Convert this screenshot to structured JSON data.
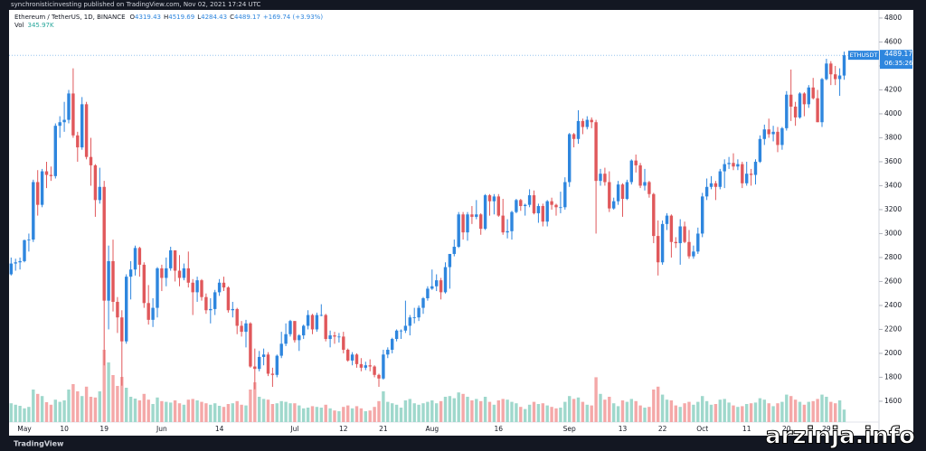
{
  "header": {
    "published": "synchronisticinvesting published on TradingView.com, Nov 02, 2021 17:24 UTC",
    "symbol": "Ethereum / TetherUS, 1D, BINANCE",
    "change": "+169.74 (+3.93%)",
    "ohlc_letters": [
      "O",
      "H",
      "L",
      "C"
    ],
    "volume_name": "Vol",
    "volume_label": "345.97K"
  },
  "price_badge": {
    "ticker": "ETHUSDT",
    "countdown": "06:35:26"
  },
  "footer": {
    "logo": "TradingView",
    "watermark": "arzinja.info"
  },
  "chart_data": {
    "type": "candlestick",
    "up_color": "#2e86de",
    "down_color": "#e0585b",
    "volume_up_color": "#9fd8cc",
    "volume_down_color": "#f4a8a8",
    "ylim": [
      1426,
      4860
    ],
    "yticks": [
      1600,
      1800,
      2000,
      2200,
      2400,
      2600,
      2800,
      3000,
      3200,
      3400,
      3600,
      3800,
      4000,
      4200,
      4400,
      4600,
      4800
    ],
    "categories": [
      null,
      null,
      null,
      "May",
      null,
      null,
      null,
      null,
      null,
      null,
      null,
      null,
      "10",
      null,
      null,
      null,
      null,
      null,
      null,
      null,
      null,
      "19",
      null,
      null,
      null,
      null,
      null,
      null,
      null,
      null,
      null,
      null,
      null,
      null,
      "Jun",
      null,
      null,
      null,
      null,
      null,
      null,
      null,
      null,
      null,
      null,
      null,
      null,
      "14",
      null,
      null,
      null,
      null,
      null,
      null,
      null,
      null,
      null,
      null,
      null,
      null,
      null,
      null,
      null,
      null,
      "Jul",
      null,
      null,
      null,
      null,
      null,
      null,
      null,
      null,
      null,
      null,
      "12",
      null,
      null,
      null,
      null,
      null,
      null,
      null,
      null,
      "21",
      null,
      null,
      null,
      null,
      null,
      null,
      null,
      null,
      null,
      null,
      "Aug",
      null,
      null,
      null,
      null,
      null,
      null,
      null,
      null,
      null,
      null,
      null,
      null,
      null,
      null,
      "16",
      null,
      null,
      null,
      null,
      null,
      null,
      null,
      null,
      null,
      null,
      null,
      null,
      null,
      null,
      null,
      "Sep",
      null,
      null,
      null,
      null,
      null,
      null,
      null,
      null,
      null,
      null,
      null,
      "13",
      null,
      null,
      null,
      null,
      null,
      null,
      null,
      null,
      "22",
      null,
      null,
      null,
      null,
      null,
      null,
      null,
      null,
      "Oct",
      null,
      null,
      null,
      null,
      null,
      null,
      null,
      null,
      null,
      "11",
      null,
      null,
      null,
      null,
      null,
      null,
      null,
      null,
      "20",
      null,
      null,
      null,
      null,
      null,
      null,
      null,
      null,
      "29",
      null,
      null,
      null,
      null
    ],
    "ohlc": [
      [
        2660,
        2800,
        2650,
        2750
      ],
      [
        2750,
        2790,
        2690,
        2760
      ],
      [
        2760,
        2800,
        2700,
        2770
      ],
      [
        2770,
        2950,
        2760,
        2945
      ],
      [
        2945,
        3000,
        2850,
        2950
      ],
      [
        2950,
        3450,
        2930,
        3430
      ],
      [
        3430,
        3530,
        3150,
        3240
      ],
      [
        3240,
        3540,
        3220,
        3520
      ],
      [
        3520,
        3600,
        3380,
        3490
      ],
      [
        3490,
        3560,
        3440,
        3480
      ],
      [
        3480,
        3920,
        3460,
        3900
      ],
      [
        3900,
        3980,
        3800,
        3930
      ],
      [
        3930,
        4100,
        3850,
        3950
      ],
      [
        3950,
        4200,
        3920,
        4170
      ],
      [
        4170,
        4380,
        3800,
        3820
      ],
      [
        3820,
        3850,
        3600,
        3720
      ],
      [
        3720,
        4140,
        3700,
        4080
      ],
      [
        4080,
        4100,
        3620,
        3640
      ],
      [
        3640,
        3800,
        3400,
        3570
      ],
      [
        3570,
        3580,
        3140,
        3280
      ],
      [
        3280,
        3550,
        3250,
        3390
      ],
      [
        3390,
        3440,
        1900,
        2440
      ],
      [
        2440,
        2900,
        2200,
        2770
      ],
      [
        2770,
        2950,
        2350,
        2430
      ],
      [
        2430,
        2470,
        2170,
        2300
      ],
      [
        2300,
        2360,
        1730,
        2100
      ],
      [
        2100,
        2660,
        2080,
        2640
      ],
      [
        2640,
        2770,
        2450,
        2700
      ],
      [
        2700,
        2900,
        2650,
        2880
      ],
      [
        2880,
        2890,
        2640,
        2740
      ],
      [
        2740,
        2760,
        2380,
        2420
      ],
      [
        2420,
        2570,
        2240,
        2280
      ],
      [
        2280,
        2460,
        2220,
        2380
      ],
      [
        2380,
        2720,
        2300,
        2710
      ],
      [
        2710,
        2740,
        2520,
        2630
      ],
      [
        2630,
        2800,
        2560,
        2710
      ],
      [
        2710,
        2890,
        2690,
        2860
      ],
      [
        2860,
        2860,
        2600,
        2690
      ],
      [
        2690,
        2820,
        2560,
        2630
      ],
      [
        2630,
        2750,
        2610,
        2710
      ],
      [
        2710,
        2850,
        2550,
        2590
      ],
      [
        2590,
        2620,
        2320,
        2510
      ],
      [
        2510,
        2640,
        2430,
        2610
      ],
      [
        2610,
        2620,
        2440,
        2470
      ],
      [
        2470,
        2500,
        2330,
        2360
      ],
      [
        2360,
        2460,
        2250,
        2370
      ],
      [
        2370,
        2530,
        2320,
        2510
      ],
      [
        2510,
        2620,
        2480,
        2590
      ],
      [
        2590,
        2640,
        2520,
        2550
      ],
      [
        2550,
        2560,
        2340,
        2360
      ],
      [
        2360,
        2430,
        2300,
        2370
      ],
      [
        2370,
        2380,
        2160,
        2230
      ],
      [
        2230,
        2270,
        2140,
        2180
      ],
      [
        2180,
        2280,
        2050,
        2250
      ],
      [
        2250,
        2260,
        1880,
        1890
      ],
      [
        1890,
        2040,
        1700,
        1870
      ],
      [
        1870,
        2020,
        1850,
        1970
      ],
      [
        1970,
        2040,
        1900,
        1990
      ],
      [
        1990,
        2010,
        1810,
        1830
      ],
      [
        1830,
        1880,
        1720,
        1820
      ],
      [
        1820,
        1990,
        1800,
        1980
      ],
      [
        1980,
        2180,
        1960,
        2080
      ],
      [
        2080,
        2250,
        2060,
        2160
      ],
      [
        2160,
        2280,
        2140,
        2270
      ],
      [
        2270,
        2270,
        2090,
        2110
      ],
      [
        2110,
        2160,
        2020,
        2150
      ],
      [
        2150,
        2240,
        2120,
        2230
      ],
      [
        2230,
        2360,
        2200,
        2320
      ],
      [
        2320,
        2330,
        2160,
        2200
      ],
      [
        2200,
        2340,
        2180,
        2320
      ],
      [
        2320,
        2410,
        2310,
        2320
      ],
      [
        2320,
        2330,
        2100,
        2120
      ],
      [
        2120,
        2190,
        2050,
        2150
      ],
      [
        2150,
        2180,
        2080,
        2140
      ],
      [
        2140,
        2170,
        2090,
        2140
      ],
      [
        2140,
        2180,
        2000,
        2030
      ],
      [
        2030,
        2040,
        1930,
        1940
      ],
      [
        1940,
        2010,
        1900,
        1990
      ],
      [
        1990,
        2000,
        1880,
        1910
      ],
      [
        1910,
        1960,
        1850,
        1880
      ],
      [
        1880,
        1930,
        1860,
        1900
      ],
      [
        1900,
        1950,
        1850,
        1890
      ],
      [
        1890,
        1900,
        1800,
        1820
      ],
      [
        1820,
        1830,
        1720,
        1790
      ],
      [
        1790,
        2030,
        1780,
        1990
      ],
      [
        1990,
        2050,
        1960,
        2030
      ],
      [
        2030,
        2130,
        2000,
        2120
      ],
      [
        2120,
        2200,
        2100,
        2190
      ],
      [
        2190,
        2200,
        2120,
        2190
      ],
      [
        2190,
        2440,
        2170,
        2230
      ],
      [
        2230,
        2320,
        2150,
        2300
      ],
      [
        2300,
        2380,
        2250,
        2300
      ],
      [
        2300,
        2400,
        2270,
        2380
      ],
      [
        2380,
        2470,
        2330,
        2460
      ],
      [
        2460,
        2560,
        2440,
        2540
      ],
      [
        2540,
        2700,
        2530,
        2560
      ],
      [
        2560,
        2660,
        2520,
        2610
      ],
      [
        2610,
        2630,
        2450,
        2510
      ],
      [
        2510,
        2760,
        2500,
        2720
      ],
      [
        2720,
        2830,
        2540,
        2830
      ],
      [
        2830,
        2950,
        2810,
        2890
      ],
      [
        2890,
        3180,
        2880,
        3160
      ],
      [
        3160,
        3180,
        2950,
        3010
      ],
      [
        3010,
        3180,
        2940,
        3160
      ],
      [
        3160,
        3230,
        3080,
        3140
      ],
      [
        3140,
        3280,
        3120,
        3160
      ],
      [
        3160,
        3170,
        2990,
        3040
      ],
      [
        3040,
        3330,
        3030,
        3320
      ],
      [
        3320,
        3330,
        3150,
        3270
      ],
      [
        3270,
        3330,
        3160,
        3310
      ],
      [
        3310,
        3330,
        3140,
        3150
      ],
      [
        3150,
        3290,
        2990,
        3010
      ],
      [
        3010,
        3120,
        2960,
        3020
      ],
      [
        3020,
        3190,
        2950,
        3180
      ],
      [
        3180,
        3290,
        3170,
        3280
      ],
      [
        3280,
        3290,
        3190,
        3230
      ],
      [
        3230,
        3250,
        3150,
        3240
      ],
      [
        3240,
        3370,
        3220,
        3320
      ],
      [
        3320,
        3360,
        3160,
        3170
      ],
      [
        3170,
        3250,
        3090,
        3230
      ],
      [
        3230,
        3250,
        3060,
        3100
      ],
      [
        3100,
        3280,
        3060,
        3270
      ],
      [
        3270,
        3300,
        3200,
        3240
      ],
      [
        3240,
        3250,
        3150,
        3220
      ],
      [
        3220,
        3350,
        3170,
        3220
      ],
      [
        3220,
        3470,
        3200,
        3430
      ],
      [
        3430,
        3840,
        3390,
        3830
      ],
      [
        3830,
        3840,
        3720,
        3790
      ],
      [
        3790,
        4030,
        3750,
        3940
      ],
      [
        3940,
        3960,
        3830,
        3890
      ],
      [
        3890,
        3980,
        3870,
        3950
      ],
      [
        3950,
        3970,
        3880,
        3930
      ],
      [
        3930,
        3950,
        3000,
        3440
      ],
      [
        3440,
        3540,
        3400,
        3500
      ],
      [
        3500,
        3550,
        3400,
        3430
      ],
      [
        3430,
        3520,
        3180,
        3210
      ],
      [
        3210,
        3300,
        3200,
        3270
      ],
      [
        3270,
        3440,
        3240,
        3410
      ],
      [
        3410,
        3420,
        3140,
        3290
      ],
      [
        3290,
        3450,
        3280,
        3430
      ],
      [
        3430,
        3620,
        3410,
        3610
      ],
      [
        3610,
        3660,
        3510,
        3570
      ],
      [
        3570,
        3590,
        3380,
        3400
      ],
      [
        3400,
        3540,
        3360,
        3430
      ],
      [
        3430,
        3440,
        3300,
        3330
      ],
      [
        3330,
        3340,
        2920,
        2980
      ],
      [
        2980,
        3110,
        2650,
        2760
      ],
      [
        2760,
        3110,
        2740,
        3080
      ],
      [
        3080,
        3170,
        3030,
        3150
      ],
      [
        3150,
        3160,
        2800,
        2930
      ],
      [
        2930,
        2970,
        2880,
        2920
      ],
      [
        2920,
        3120,
        2740,
        3060
      ],
      [
        3060,
        3100,
        2920,
        2930
      ],
      [
        2930,
        3030,
        2790,
        2810
      ],
      [
        2810,
        2900,
        2790,
        2850
      ],
      [
        2850,
        3050,
        2830,
        3000
      ],
      [
        3000,
        3340,
        2970,
        3310
      ],
      [
        3310,
        3460,
        3280,
        3390
      ],
      [
        3390,
        3480,
        3370,
        3420
      ],
      [
        3420,
        3440,
        3280,
        3390
      ],
      [
        3390,
        3540,
        3370,
        3520
      ],
      [
        3520,
        3620,
        3380,
        3580
      ],
      [
        3580,
        3640,
        3540,
        3590
      ],
      [
        3590,
        3670,
        3530,
        3560
      ],
      [
        3560,
        3620,
        3530,
        3580
      ],
      [
        3580,
        3600,
        3380,
        3420
      ],
      [
        3420,
        3600,
        3400,
        3500
      ],
      [
        3500,
        3540,
        3400,
        3490
      ],
      [
        3490,
        3620,
        3410,
        3600
      ],
      [
        3600,
        3820,
        3590,
        3790
      ],
      [
        3790,
        3910,
        3740,
        3870
      ],
      [
        3870,
        3960,
        3800,
        3830
      ],
      [
        3830,
        3900,
        3770,
        3850
      ],
      [
        3850,
        3890,
        3680,
        3740
      ],
      [
        3740,
        3890,
        3700,
        3880
      ],
      [
        3880,
        4190,
        3860,
        4160
      ],
      [
        4160,
        4370,
        3940,
        4060
      ],
      [
        4060,
        4100,
        3900,
        3970
      ],
      [
        3970,
        4180,
        3960,
        4170
      ],
      [
        4170,
        4180,
        3980,
        4080
      ],
      [
        4080,
        4240,
        4050,
        4220
      ],
      [
        4220,
        4300,
        4120,
        4130
      ],
      [
        4130,
        4200,
        3930,
        3930
      ],
      [
        3930,
        4300,
        3890,
        4290
      ],
      [
        4290,
        4460,
        4280,
        4420
      ],
      [
        4420,
        4440,
        4240,
        4330
      ],
      [
        4330,
        4400,
        4240,
        4290
      ],
      [
        4290,
        4380,
        4150,
        4320
      ],
      [
        4319.43,
        4519.69,
        4284.43,
        4489.17
      ]
    ],
    "volume": [
      520,
      480,
      450,
      380,
      420,
      900,
      780,
      720,
      550,
      480,
      620,
      560,
      600,
      900,
      1050,
      850,
      720,
      980,
      700,
      680,
      850,
      2000,
      1650,
      1300,
      1000,
      1250,
      950,
      700,
      650,
      600,
      780,
      620,
      500,
      680,
      580,
      560,
      540,
      600,
      520,
      480,
      620,
      640,
      600,
      560,
      520,
      480,
      520,
      450,
      420,
      500,
      520,
      580,
      480,
      460,
      900,
      1100,
      700,
      640,
      620,
      500,
      520,
      580,
      560,
      520,
      520,
      460,
      380,
      400,
      440,
      420,
      400,
      480,
      380,
      320,
      300,
      420,
      460,
      380,
      440,
      380,
      300,
      320,
      420,
      580,
      850,
      560,
      520,
      480,
      400,
      600,
      640,
      520,
      480,
      520,
      560,
      600,
      520,
      580,
      700,
      720,
      660,
      820,
      780,
      700,
      600,
      640,
      580,
      700,
      560,
      480,
      600,
      640,
      620,
      560,
      520,
      420,
      360,
      480,
      560,
      500,
      520,
      460,
      420,
      380,
      400,
      560,
      720,
      640,
      680,
      560,
      480,
      460,
      1240,
      780,
      620,
      700,
      520,
      440,
      600,
      560,
      640,
      580,
      460,
      400,
      420,
      900,
      980,
      760,
      620,
      600,
      460,
      420,
      520,
      560,
      480,
      560,
      720,
      580,
      480,
      500,
      620,
      640,
      540,
      460,
      420,
      440,
      500,
      520,
      540,
      660,
      620,
      520,
      440,
      520,
      560,
      760,
      720,
      620,
      560,
      480,
      560,
      580,
      640,
      760,
      700,
      560,
      520,
      600,
      345.97
    ]
  }
}
